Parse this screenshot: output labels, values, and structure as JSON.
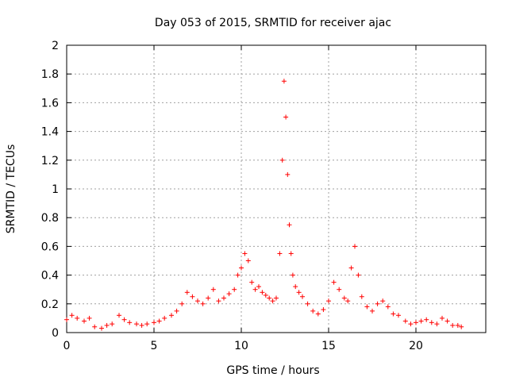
{
  "chart_data": {
    "type": "scatter",
    "title": "Day 053 of 2015, SRMTID for receiver ajac",
    "xlabel": "GPS time / hours",
    "ylabel": "SRMTID / TECUs",
    "xlim": [
      0,
      24
    ],
    "ylim": [
      0,
      2
    ],
    "xticks": [
      0,
      5,
      10,
      15,
      20
    ],
    "yticks": [
      0,
      0.2,
      0.4,
      0.6,
      0.8,
      1,
      1.2,
      1.4,
      1.6,
      1.8,
      2
    ],
    "xtick_labels": [
      "0",
      "5",
      "10",
      "15",
      "20"
    ],
    "ytick_labels": [
      "0",
      "0.2",
      "0.4",
      "0.6",
      "0.8",
      "1",
      "1.2",
      "1.4",
      "1.6",
      "1.8",
      "2"
    ],
    "grid": true,
    "marker": "+",
    "color": "#ff0000",
    "series": [
      {
        "name": "SRMTID",
        "x": [
          0.0,
          0.3,
          0.6,
          1.0,
          1.3,
          1.6,
          2.0,
          2.3,
          2.6,
          3.0,
          3.3,
          3.6,
          4.0,
          4.3,
          4.6,
          5.0,
          5.3,
          5.6,
          6.0,
          6.3,
          6.6,
          6.9,
          7.2,
          7.5,
          7.8,
          8.1,
          8.4,
          8.7,
          9.0,
          9.3,
          9.6,
          9.8,
          10.0,
          10.2,
          10.4,
          10.6,
          10.8,
          11.0,
          11.2,
          11.4,
          11.6,
          11.8,
          12.0,
          12.2,
          12.35,
          12.45,
          12.55,
          12.65,
          12.75,
          12.85,
          12.95,
          13.1,
          13.3,
          13.5,
          13.8,
          14.1,
          14.4,
          14.7,
          15.0,
          15.3,
          15.6,
          15.9,
          16.1,
          16.3,
          16.5,
          16.7,
          16.9,
          17.2,
          17.5,
          17.8,
          18.1,
          18.4,
          18.7,
          19.0,
          19.4,
          19.7,
          20.0,
          20.3,
          20.6,
          20.9,
          21.2,
          21.5,
          21.8,
          22.1,
          22.4,
          22.6
        ],
        "y": [
          0.09,
          0.12,
          0.1,
          0.08,
          0.1,
          0.04,
          0.03,
          0.05,
          0.06,
          0.12,
          0.09,
          0.07,
          0.06,
          0.05,
          0.06,
          0.07,
          0.08,
          0.1,
          0.12,
          0.15,
          0.2,
          0.28,
          0.25,
          0.22,
          0.2,
          0.24,
          0.3,
          0.22,
          0.24,
          0.27,
          0.3,
          0.4,
          0.45,
          0.55,
          0.5,
          0.35,
          0.3,
          0.32,
          0.28,
          0.26,
          0.24,
          0.22,
          0.24,
          0.55,
          1.2,
          1.75,
          1.5,
          1.1,
          0.75,
          0.55,
          0.4,
          0.32,
          0.28,
          0.25,
          0.2,
          0.15,
          0.13,
          0.16,
          0.22,
          0.35,
          0.3,
          0.24,
          0.22,
          0.45,
          0.6,
          0.4,
          0.25,
          0.18,
          0.15,
          0.2,
          0.22,
          0.18,
          0.13,
          0.12,
          0.08,
          0.06,
          0.07,
          0.08,
          0.09,
          0.07,
          0.06,
          0.1,
          0.08,
          0.05,
          0.05,
          0.04
        ]
      }
    ]
  }
}
